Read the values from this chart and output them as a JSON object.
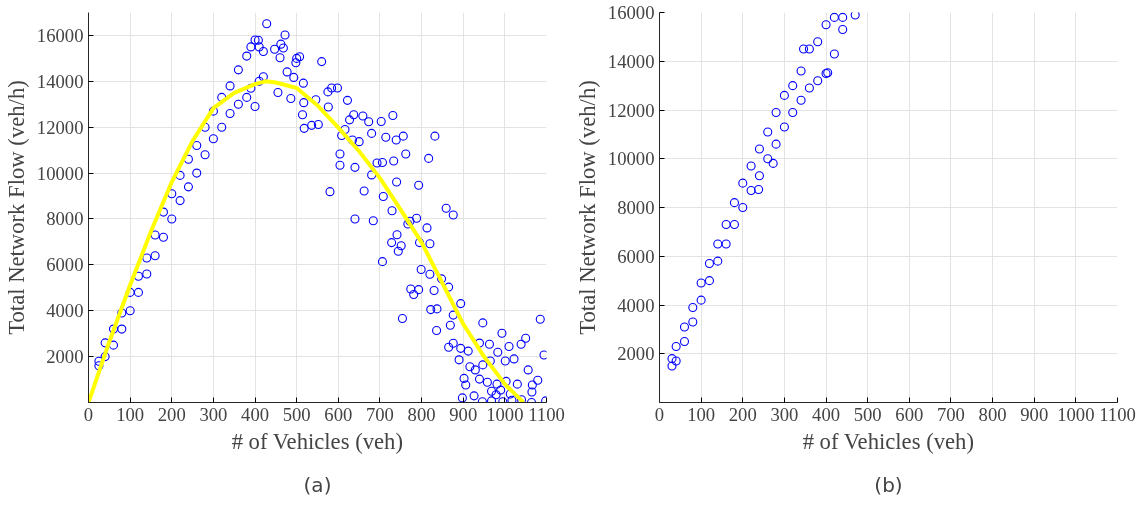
{
  "chart_data": [
    {
      "type": "scatter",
      "xlabel": "# of Vehicles (veh)",
      "ylabel": "Total Network Flow (veh/h)",
      "annotations": [
        "(a)"
      ],
      "xlim": [
        0,
        1100
      ],
      "ylim": [
        0,
        17000
      ],
      "xticks": [
        0,
        100,
        200,
        300,
        400,
        500,
        600,
        700,
        800,
        900,
        1000,
        1100
      ],
      "yticks": [
        2000,
        4000,
        6000,
        8000,
        10000,
        12000,
        14000,
        16000
      ],
      "grid": true,
      "series": [
        {
          "marker": "circle",
          "color": "#0000ff",
          "x": [
            25,
            25,
            40,
            40,
            60,
            60,
            80,
            80,
            100,
            100,
            120,
            120,
            140,
            140,
            160,
            160,
            180,
            180,
            200,
            200,
            220,
            220,
            240,
            240,
            260,
            260,
            280,
            280,
            300,
            300,
            320,
            320,
            340,
            340,
            360,
            360,
            380,
            380,
            390,
            390,
            400,
            400,
            410,
            410,
            420,
            420,
            428,
            472,
            408,
            462,
            468,
            447,
            460,
            500,
            507,
            498,
            560,
            477,
            493,
            516,
            455,
            486,
            517,
            546,
            575,
            584,
            598,
            576,
            622,
            514,
            518,
            536,
            552,
            637,
            627,
            659,
            673,
            703,
            731,
            608,
            616,
            634,
            650,
            680,
            714,
            739,
            756,
            832,
            604,
            604,
            640,
            693,
            706,
            733,
            762,
            817,
            740,
            793,
            680,
            580,
            662,
            708,
            729,
            788,
            859,
            876,
            640,
            684,
            767,
            772,
            813,
            741,
            728,
            744,
            751,
            795,
            820,
            706,
            799,
            820,
            848,
            865,
            774,
            781,
            793,
            830,
            894,
            876,
            822,
            837,
            754,
            836,
            869,
            947,
            993,
            1085,
            876,
            865,
            894,
            912,
            939,
            963,
            1010,
            1039,
            1050,
            1094,
            890,
            916,
            929,
            947,
            965,
            983,
            1001,
            1022,
            1056,
            902,
            906,
            939,
            958,
            981,
            1003,
            1030,
            1066,
            1079,
            898,
            926,
            946,
            968,
            995,
            1017,
            1040,
            1064,
            1098,
            979,
            1013,
            968,
            990,
            1065
          ],
          "values": [
            1600,
            1800,
            2000,
            2600,
            2500,
            3200,
            3200,
            3900,
            4000,
            4800,
            4800,
            5500,
            5600,
            6300,
            6400,
            7300,
            7200,
            8300,
            8000,
            9100,
            8800,
            9900,
            9400,
            10600,
            10000,
            11200,
            10800,
            12000,
            11500,
            12700,
            12000,
            13300,
            12600,
            13800,
            13000,
            14500,
            13300,
            15100,
            13700,
            15500,
            12900,
            15800,
            14000,
            15500,
            14200,
            15300,
            16510,
            16020,
            15790,
            15620,
            15450,
            15400,
            15030,
            15000,
            15070,
            14810,
            14860,
            14410,
            14170,
            13920,
            13510,
            13250,
            13070,
            13200,
            13540,
            13710,
            13710,
            12880,
            13170,
            12540,
            11950,
            12080,
            12120,
            12540,
            12320,
            12490,
            12240,
            12250,
            12510,
            11640,
            11900,
            11440,
            11370,
            11730,
            11560,
            11440,
            11610,
            11610,
            10830,
            10340,
            10250,
            10440,
            10460,
            10530,
            10830,
            10640,
            9610,
            9470,
            9920,
            9190,
            9220,
            8980,
            8360,
            8030,
            8470,
            8170,
            8000,
            7920,
            7780,
            7900,
            7610,
            7310,
            6970,
            6590,
            6830,
            6970,
            6920,
            6140,
            5800,
            5590,
            5390,
            5030,
            4950,
            4710,
            4920,
            4880,
            4310,
            3810,
            4050,
            4080,
            3660,
            3140,
            3370,
            3470,
            3020,
            3630,
            2580,
            2410,
            2360,
            2240,
            2590,
            2540,
            2440,
            2540,
            2800,
            2070,
            1860,
            1560,
            1420,
            1640,
            1810,
            2190,
            1810,
            1900,
            1420,
            1050,
            760,
            1020,
            880,
            800,
            920,
            800,
            760,
            970,
            200,
            290,
            30,
            70,
            30,
            100,
            120,
            0,
            70,
            340,
            370,
            490,
            540,
            460
          ]
        },
        {
          "type": "line",
          "marker": "none",
          "color": "#ffff00",
          "x": [
            0,
            50,
            100,
            150,
            200,
            250,
            300,
            350,
            400,
            425,
            450,
            500,
            550,
            600,
            650,
            700,
            750,
            800,
            850,
            900,
            950,
            1000,
            1045
          ],
          "values": [
            0,
            2650,
            5120,
            7450,
            9610,
            11400,
            12830,
            13500,
            13880,
            14000,
            13950,
            13710,
            12950,
            11980,
            10950,
            9780,
            8400,
            6980,
            5200,
            3420,
            2000,
            800,
            0
          ]
        }
      ]
    },
    {
      "type": "scatter",
      "xlabel": "# of Vehicles (veh)",
      "ylabel": "Total Network Flow (veh/h)",
      "annotations": [
        "(b)"
      ],
      "xlim": [
        0,
        1100
      ],
      "ylim": [
        0,
        16000
      ],
      "xticks": [
        0,
        100,
        200,
        300,
        400,
        500,
        600,
        700,
        800,
        900,
        1000,
        1100
      ],
      "yticks": [
        2000,
        4000,
        6000,
        8000,
        10000,
        12000,
        14000,
        16000
      ],
      "grid": true,
      "series": [
        {
          "marker": "circle",
          "color": "#0000ff",
          "x": [
            30,
            30,
            40,
            40,
            60,
            60,
            80,
            80,
            100,
            100,
            120,
            120,
            140,
            140,
            160,
            160,
            180,
            180,
            200,
            200,
            220,
            220,
            240,
            240,
            260,
            260,
            280,
            280,
            300,
            300,
            320,
            320,
            340,
            340,
            360,
            360,
            380,
            380,
            400,
            400,
            420,
            420,
            440,
            440,
            470,
            273,
            238,
            404,
            346
          ],
          "values": [
            1500,
            1800,
            1700,
            2300,
            2500,
            3100,
            3300,
            3900,
            4200,
            4900,
            5000,
            5700,
            5800,
            6500,
            6500,
            7300,
            7300,
            8200,
            8000,
            9000,
            8700,
            9700,
            9300,
            10400,
            10000,
            11100,
            10600,
            11900,
            11300,
            12600,
            11900,
            13000,
            12400,
            13600,
            12900,
            14500,
            13200,
            14800,
            13500,
            15500,
            14300,
            15800,
            15300,
            15800,
            15900,
            9810,
            8740,
            13530,
            14500
          ]
        }
      ]
    }
  ]
}
